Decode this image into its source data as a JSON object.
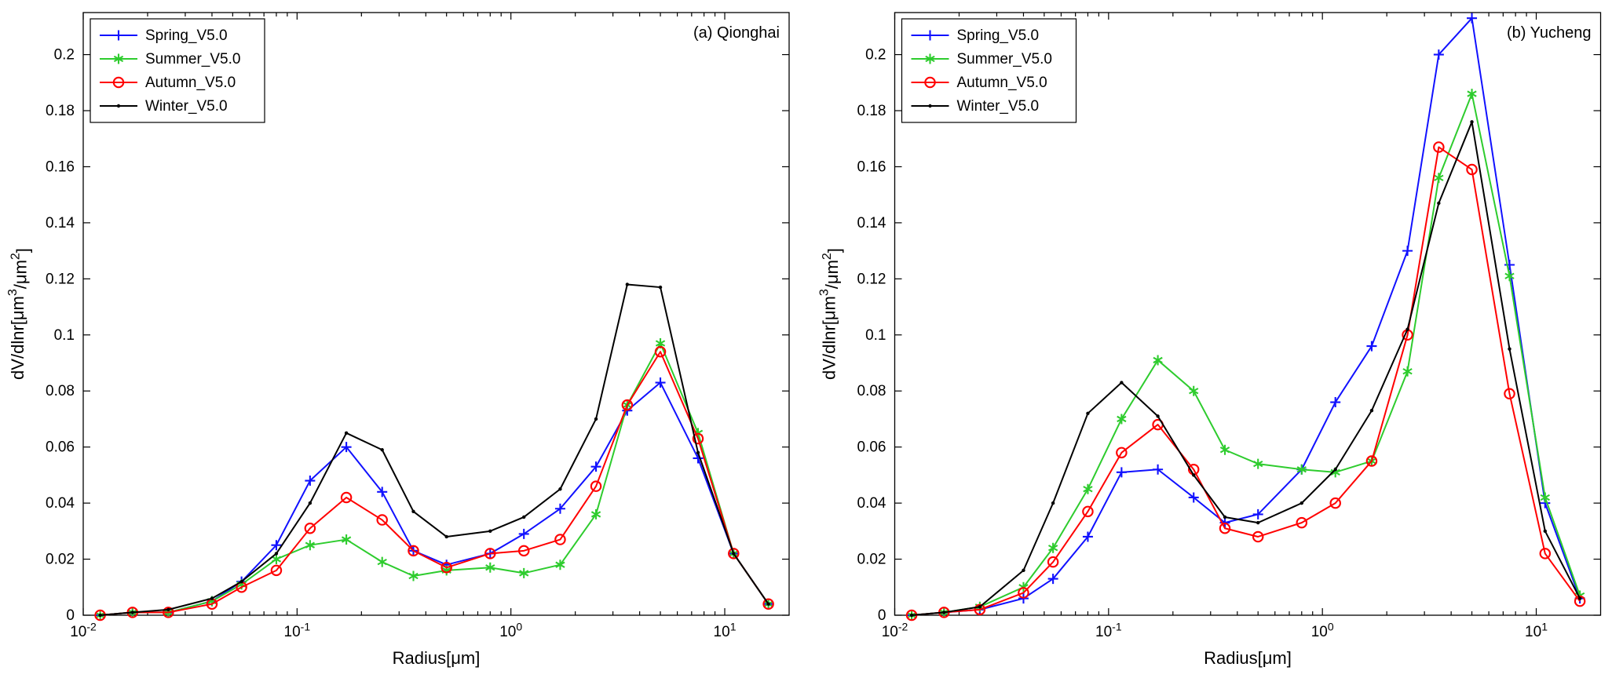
{
  "figure": {
    "background": "#ffffff",
    "axis_color": "#000000"
  },
  "chart_data": [
    {
      "type": "line",
      "panel_label": "(a) Qionghai",
      "xlabel": "Radius[μm]",
      "ylabel": "dV/dlnr[μm^{3}/μm^{2}]",
      "xscale": "log",
      "xlim": [
        0.01,
        20
      ],
      "ylim": [
        0,
        0.215
      ],
      "xticks": [
        {
          "v": 0.01,
          "label": "10^{-2}"
        },
        {
          "v": 0.1,
          "label": "10^{-1}"
        },
        {
          "v": 1,
          "label": "10^{0}"
        },
        {
          "v": 10,
          "label": "10^{1}"
        }
      ],
      "yticks": [
        {
          "v": 0,
          "label": "0"
        },
        {
          "v": 0.02,
          "label": "0.02"
        },
        {
          "v": 0.04,
          "label": "0.04"
        },
        {
          "v": 0.06,
          "label": "0.06"
        },
        {
          "v": 0.08,
          "label": "0.08"
        },
        {
          "v": 0.1,
          "label": "0.1"
        },
        {
          "v": 0.12,
          "label": "0.12"
        },
        {
          "v": 0.14,
          "label": "0.14"
        },
        {
          "v": 0.16,
          "label": "0.16"
        },
        {
          "v": 0.18,
          "label": "0.18"
        },
        {
          "v": 0.2,
          "label": "0.2"
        }
      ],
      "legend_position": "top-left",
      "grid": false,
      "x": [
        0.012,
        0.017,
        0.025,
        0.04,
        0.055,
        0.08,
        0.115,
        0.17,
        0.25,
        0.35,
        0.5,
        0.8,
        1.15,
        1.7,
        2.5,
        3.5,
        5.0,
        7.5,
        11.0,
        16.0
      ],
      "series": [
        {
          "name": "Spring_V5.0",
          "color": "#1111ff",
          "marker": "plus",
          "values": [
            0.0,
            0.001,
            0.001,
            0.005,
            0.012,
            0.025,
            0.048,
            0.06,
            0.044,
            0.023,
            0.018,
            0.022,
            0.029,
            0.038,
            0.053,
            0.073,
            0.083,
            0.056,
            0.022,
            0.004
          ]
        },
        {
          "name": "Summer_V5.0",
          "color": "#2ecc2e",
          "marker": "asterisk",
          "values": [
            0.0,
            0.001,
            0.001,
            0.005,
            0.011,
            0.02,
            0.025,
            0.027,
            0.019,
            0.014,
            0.016,
            0.017,
            0.015,
            0.018,
            0.036,
            0.075,
            0.097,
            0.065,
            0.022,
            0.004
          ]
        },
        {
          "name": "Autumn_V5.0",
          "color": "#ff0000",
          "marker": "circle",
          "values": [
            0.0,
            0.001,
            0.001,
            0.004,
            0.01,
            0.016,
            0.031,
            0.042,
            0.034,
            0.023,
            0.017,
            0.022,
            0.023,
            0.027,
            0.046,
            0.075,
            0.094,
            0.063,
            0.022,
            0.004
          ]
        },
        {
          "name": "Winter_V5.0",
          "color": "#000000",
          "marker": "dot",
          "values": [
            0.0,
            0.001,
            0.002,
            0.006,
            0.012,
            0.022,
            0.04,
            0.065,
            0.059,
            0.037,
            0.028,
            0.03,
            0.035,
            0.045,
            0.07,
            0.118,
            0.117,
            0.058,
            0.022,
            0.004
          ]
        }
      ]
    },
    {
      "type": "line",
      "panel_label": "(b) Yucheng",
      "xlabel": "Radius[μm]",
      "ylabel": "dV/dlnr[μm^{3}/μm^{2}]",
      "xscale": "log",
      "xlim": [
        0.01,
        20
      ],
      "ylim": [
        0,
        0.215
      ],
      "xticks": [
        {
          "v": 0.01,
          "label": "10^{-2}"
        },
        {
          "v": 0.1,
          "label": "10^{-1}"
        },
        {
          "v": 1,
          "label": "10^{0}"
        },
        {
          "v": 10,
          "label": "10^{1}"
        }
      ],
      "yticks": [
        {
          "v": 0,
          "label": "0"
        },
        {
          "v": 0.02,
          "label": "0.02"
        },
        {
          "v": 0.04,
          "label": "0.04"
        },
        {
          "v": 0.06,
          "label": "0.06"
        },
        {
          "v": 0.08,
          "label": "0.08"
        },
        {
          "v": 0.1,
          "label": "0.1"
        },
        {
          "v": 0.12,
          "label": "0.12"
        },
        {
          "v": 0.14,
          "label": "0.14"
        },
        {
          "v": 0.16,
          "label": "0.16"
        },
        {
          "v": 0.18,
          "label": "0.18"
        },
        {
          "v": 0.2,
          "label": "0.2"
        }
      ],
      "legend_position": "top-left",
      "grid": false,
      "x": [
        0.012,
        0.017,
        0.025,
        0.04,
        0.055,
        0.08,
        0.115,
        0.17,
        0.25,
        0.35,
        0.5,
        0.8,
        1.15,
        1.7,
        2.5,
        3.5,
        5.0,
        7.5,
        11.0,
        16.0
      ],
      "series": [
        {
          "name": "Spring_V5.0",
          "color": "#1111ff",
          "marker": "plus",
          "values": [
            0.0,
            0.001,
            0.002,
            0.006,
            0.013,
            0.028,
            0.051,
            0.052,
            0.042,
            0.033,
            0.036,
            0.052,
            0.076,
            0.096,
            0.13,
            0.2,
            0.213,
            0.125,
            0.04,
            0.006
          ]
        },
        {
          "name": "Summer_V5.0",
          "color": "#2ecc2e",
          "marker": "asterisk",
          "values": [
            0.0,
            0.001,
            0.003,
            0.01,
            0.024,
            0.045,
            0.07,
            0.091,
            0.08,
            0.059,
            0.054,
            0.052,
            0.051,
            0.055,
            0.087,
            0.156,
            0.186,
            0.121,
            0.042,
            0.007
          ]
        },
        {
          "name": "Autumn_V5.0",
          "color": "#ff0000",
          "marker": "circle",
          "values": [
            0.0,
            0.001,
            0.002,
            0.008,
            0.019,
            0.037,
            0.058,
            0.068,
            0.052,
            0.031,
            0.028,
            0.033,
            0.04,
            0.055,
            0.1,
            0.167,
            0.159,
            0.079,
            0.022,
            0.005
          ]
        },
        {
          "name": "Winter_V5.0",
          "color": "#000000",
          "marker": "dot",
          "values": [
            0.0,
            0.001,
            0.003,
            0.016,
            0.04,
            0.072,
            0.083,
            0.071,
            0.05,
            0.035,
            0.033,
            0.04,
            0.052,
            0.073,
            0.102,
            0.147,
            0.176,
            0.095,
            0.03,
            0.006
          ]
        }
      ]
    }
  ]
}
